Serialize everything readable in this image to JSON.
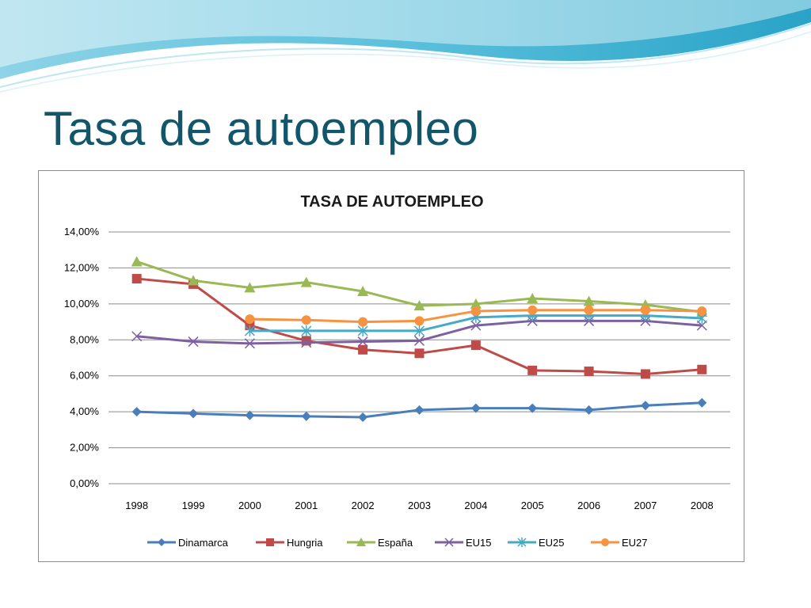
{
  "slide": {
    "title": "Tasa de autoempleo"
  },
  "chart_data": {
    "type": "line",
    "title": "TASA DE AUTOEMPLEO",
    "xlabel": "",
    "ylabel": "",
    "x": [
      "1998",
      "1999",
      "2000",
      "2001",
      "2002",
      "2003",
      "2004",
      "2005",
      "2006",
      "2007",
      "2008"
    ],
    "ylim": [
      0,
      14
    ],
    "yticks": [
      0,
      2,
      4,
      6,
      8,
      10,
      12,
      14
    ],
    "ytick_labels": [
      "0,00%",
      "2,00%",
      "4,00%",
      "6,00%",
      "8,00%",
      "10,00%",
      "12,00%",
      "14,00%"
    ],
    "grid": true,
    "legend_position": "bottom",
    "series": [
      {
        "name": "Dinamarca",
        "color": "#4a7ebb",
        "marker": "diamond",
        "values": [
          4.0,
          3.9,
          3.8,
          3.75,
          3.7,
          4.1,
          4.2,
          4.2,
          4.1,
          4.35,
          4.5
        ]
      },
      {
        "name": "Hungria",
        "color": "#be4b48",
        "marker": "square",
        "values": [
          11.4,
          11.1,
          8.8,
          7.95,
          7.45,
          7.25,
          7.7,
          6.3,
          6.25,
          6.1,
          6.35
        ]
      },
      {
        "name": "España",
        "color": "#98b954",
        "marker": "triangle",
        "values": [
          12.35,
          11.3,
          10.9,
          11.2,
          10.7,
          9.9,
          10.0,
          10.3,
          10.15,
          9.95,
          9.55
        ]
      },
      {
        "name": "EU15",
        "color": "#7d60a0",
        "marker": "x",
        "values": [
          8.2,
          7.9,
          7.8,
          7.85,
          7.9,
          7.95,
          8.8,
          9.05,
          9.05,
          9.05,
          8.8
        ]
      },
      {
        "name": "EU25",
        "color": "#46aac5",
        "marker": "star",
        "values": [
          null,
          null,
          8.5,
          8.5,
          8.5,
          8.5,
          9.25,
          9.35,
          9.35,
          9.35,
          9.2
        ]
      },
      {
        "name": "EU27",
        "color": "#f69240",
        "marker": "circle",
        "values": [
          null,
          null,
          9.15,
          9.1,
          9.0,
          9.05,
          9.6,
          9.65,
          9.65,
          9.65,
          9.6
        ]
      }
    ]
  }
}
